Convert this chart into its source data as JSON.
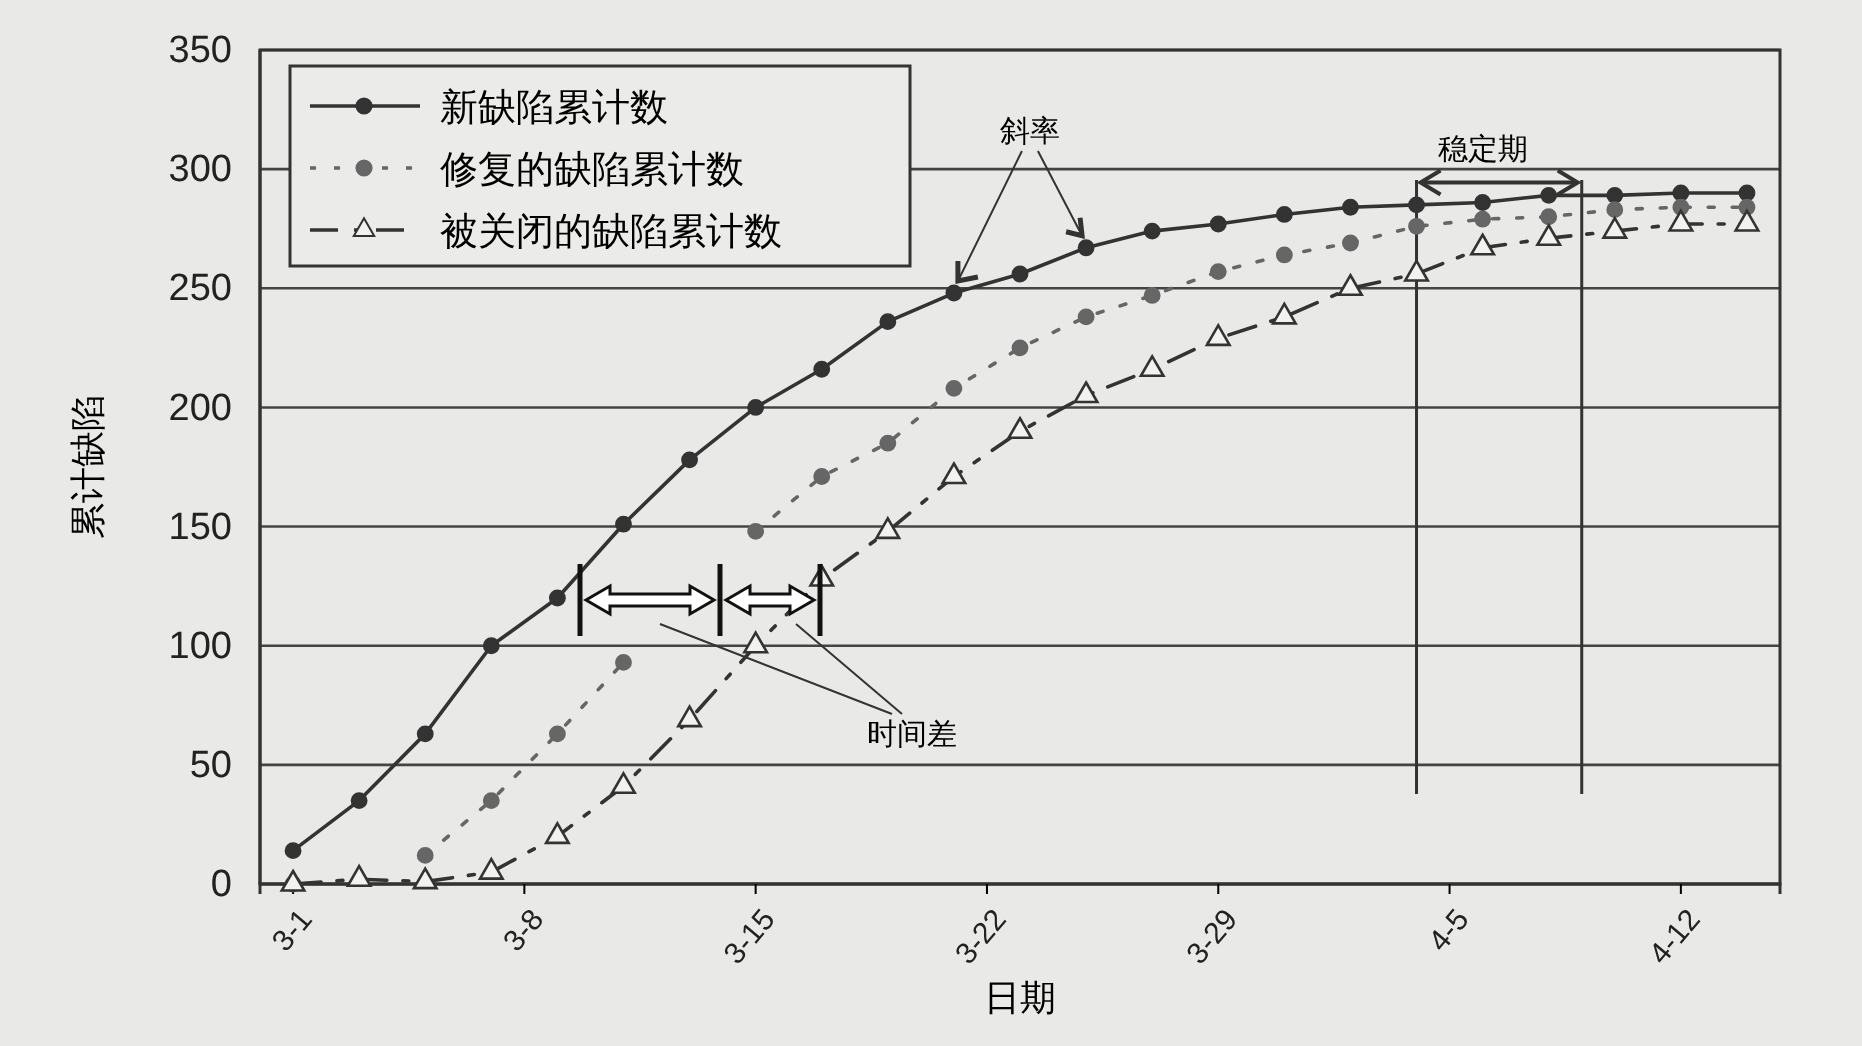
{
  "chart_data": {
    "type": "line",
    "xlabel": "日期",
    "ylabel": "累计缺陷",
    "x": [
      "--03-01",
      "--03-03",
      "--03-05",
      "--03-07",
      "--03-09",
      "--03-11",
      "--03-13",
      "--03-15",
      "--03-17",
      "--03-19",
      "--03-21",
      "--03-23",
      "--03-25",
      "--03-27",
      "--03-29",
      "--03-31",
      "--04-02",
      "--04-04",
      "--04-06",
      "--04-08",
      "--04-10",
      "--04-12",
      "--04-14"
    ],
    "series": [
      {
        "name": "新缺陷累计数",
        "color": "#333333",
        "marker": "circle",
        "line_style": "solid",
        "values": [
          14,
          35,
          63,
          100,
          120,
          151,
          178,
          200,
          216,
          236,
          248,
          256,
          267,
          274,
          277,
          281,
          284,
          285,
          286,
          289,
          289,
          290,
          290
        ]
      },
      {
        "name": "修复的缺陷累计数",
        "color": "#666666",
        "marker": "circle",
        "line_style": "dotted",
        "values": [
          0,
          null,
          12,
          35,
          63,
          93,
          null,
          148,
          171,
          185,
          208,
          225,
          238,
          247,
          257,
          264,
          269,
          276,
          279,
          280,
          283,
          284,
          284
        ]
      },
      {
        "name": "被关闭的缺陷累计数",
        "color": "#333333",
        "marker": "triangle",
        "line_style": "dashed",
        "values": [
          0,
          2,
          1,
          5,
          20,
          41,
          69,
          100,
          128,
          148,
          171,
          190,
          205,
          216,
          229,
          238,
          250,
          256,
          267,
          271,
          274,
          277,
          277
        ]
      }
    ],
    "xlim": [
      "--02-28",
      "--04-15"
    ],
    "xticks": [
      {
        "value": "--03-01",
        "label": "3-1"
      },
      {
        "value": "--03-08",
        "label": "3-8"
      },
      {
        "value": "--03-15",
        "label": "3-15"
      },
      {
        "value": "--03-22",
        "label": "3-22"
      },
      {
        "value": "--03-29",
        "label": "3-29"
      },
      {
        "value": "--04-05",
        "label": "4-5"
      },
      {
        "value": "--04-12",
        "label": "4-12"
      }
    ],
    "ylim": [
      0,
      350
    ],
    "yticks": [
      0,
      50,
      100,
      150,
      200,
      250,
      300,
      350
    ],
    "grid": "y",
    "legend": "top left",
    "ref_lines": [
      {
        "axis": "x",
        "value": "--04-04"
      },
      {
        "axis": "x",
        "value": "--04-09"
      }
    ],
    "annotations": [
      {
        "text": "斜率",
        "x": "--03-21",
        "y": 248
      },
      "时间差",
      {
        "text": "稳定期",
        "x": "--04-06",
        "y": 286
      }
    ]
  }
}
